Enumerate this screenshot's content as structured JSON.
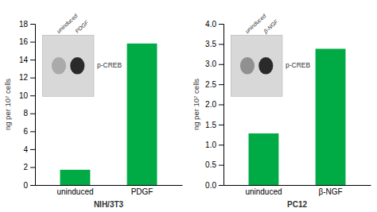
{
  "chart_data": [
    {
      "type": "bar",
      "categories": [
        "uninduced",
        "PDGF"
      ],
      "values": [
        1.7,
        15.8
      ],
      "color": "#00aa44",
      "ylim": [
        0,
        18
      ],
      "yticks": [
        0,
        2,
        4,
        6,
        8,
        10,
        12,
        14,
        16,
        18
      ],
      "ylabel": "ng per 10⁷ cells",
      "xlabel": "NIH/3T3",
      "annotations": [
        "uninduced",
        "PDGF",
        "p-CREB"
      ]
    },
    {
      "type": "bar",
      "categories": [
        "uninduced",
        "β-NGF"
      ],
      "values": [
        1.28,
        3.38
      ],
      "color": "#00aa44",
      "ylim": [
        0,
        4
      ],
      "yticks": [
        {
          "value": 0,
          "label": "0.0"
        },
        0.5,
        {
          "value": 1,
          "label": "1.0"
        },
        1.5,
        {
          "value": 2,
          "label": "2.0"
        },
        2.5,
        {
          "value": 3,
          "label": "3.0"
        },
        3.5,
        {
          "value": 4,
          "label": "4.0"
        }
      ],
      "ylabel": "ng per 10⁷ cells",
      "xlabel": "PC12",
      "annotations": [
        "uninduced",
        "β-NGF",
        "p-CREB"
      ]
    }
  ]
}
